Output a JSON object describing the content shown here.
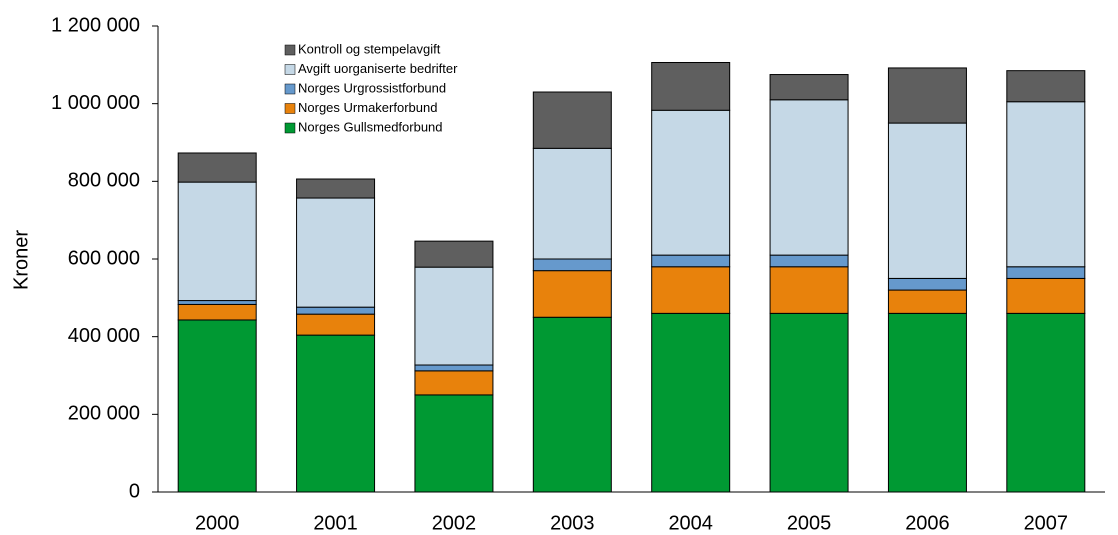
{
  "chart_data": {
    "type": "bar",
    "stacked": true,
    "y_label": "Kroner",
    "categories": [
      "2000",
      "2001",
      "2002",
      "2003",
      "2004",
      "2005",
      "2006",
      "2007"
    ],
    "series": [
      {
        "name": "Norges Gullsmedforbund",
        "color": "#009933",
        "values": [
          443000,
          404000,
          250000,
          450000,
          460000,
          460000,
          460000,
          460000
        ]
      },
      {
        "name": "Norges Urmakerforbund",
        "color": "#e8820c",
        "values": [
          40000,
          54000,
          62000,
          120000,
          120000,
          120000,
          60000,
          90000
        ]
      },
      {
        "name": "Norges Urgrossistforbund",
        "color": "#6699cc",
        "values": [
          10000,
          18000,
          15000,
          30000,
          30000,
          30000,
          30000,
          30000
        ]
      },
      {
        "name": "Avgift uorganiserte bedrifter",
        "color": "#c5d8e6",
        "values": [
          305000,
          281000,
          252000,
          285000,
          373000,
          400000,
          400000,
          425000
        ]
      },
      {
        "name": "Kontroll og stempelavgift",
        "color": "#5f5f5f",
        "values": [
          75000,
          49000,
          67000,
          145000,
          123000,
          65000,
          142000,
          80000
        ]
      }
    ],
    "ylim": [
      0,
      1200000
    ],
    "yticks": [
      0,
      {
        "value": 200000,
        "label": "200 000"
      },
      {
        "value": 400000,
        "label": "400 000"
      },
      {
        "value": 600000,
        "label": "600 000"
      },
      {
        "value": 800000,
        "label": "800 000"
      },
      {
        "value": 1000000,
        "label": "1 000 000"
      },
      {
        "value": 1200000,
        "label": "1 200 000"
      }
    ],
    "grid": false,
    "legend": "upper left"
  }
}
